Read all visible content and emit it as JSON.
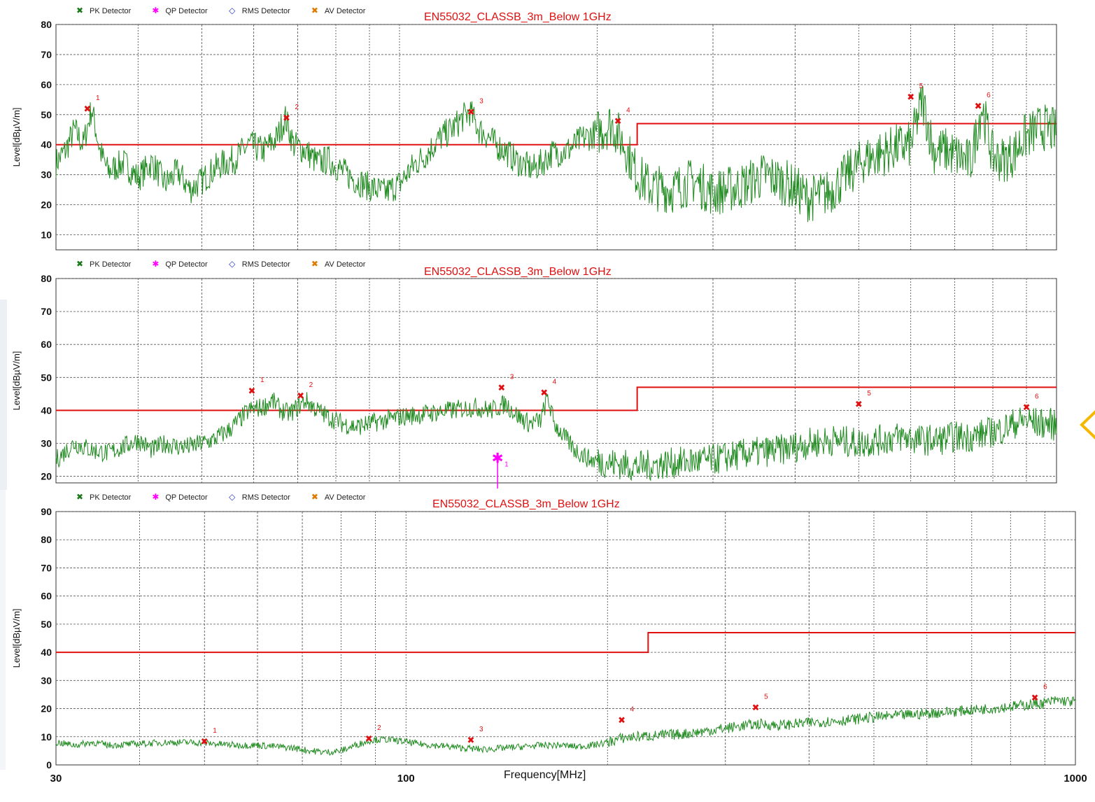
{
  "legend": {
    "pk": {
      "label": "PK Detector",
      "color": "#1a7a1a"
    },
    "qp": {
      "label": "QP Detector",
      "color": "#ff00ff"
    },
    "rms": {
      "label": "RMS Detector",
      "color": "#2233cc"
    },
    "av": {
      "label": "AV Detector",
      "color": "#e07a00"
    }
  },
  "colors": {
    "trace": "#1f8a1f",
    "limit": "#e01010",
    "marker": "#e01010",
    "qp": "#ff00ff",
    "accent": "#f5b800"
  },
  "icons": {
    "navigation": "chevron-left-icon"
  },
  "x_axis": {
    "label": "Frequency[MHz]",
    "scale": "log",
    "range": [
      30,
      1000
    ],
    "tick_labels": [
      "30",
      "100",
      "1000"
    ]
  },
  "chart_data": [
    {
      "type": "line",
      "title": "EN55032_CLASSB_3m_Below 1GHz",
      "ylabel": "Level[dBµV/m]",
      "ylim": [
        5,
        80
      ],
      "yticks": [
        10,
        20,
        30,
        40,
        50,
        60,
        70,
        80
      ],
      "xlim": [
        30,
        1000
      ],
      "xscale": "log",
      "grid": true,
      "legend_position": "top-left",
      "limit_line": [
        {
          "x": [
            30,
            230
          ],
          "y": 40
        },
        {
          "x": [
            230,
            1000
          ],
          "y": 47
        }
      ],
      "trace_points": [
        [
          30,
          34
        ],
        [
          31,
          38
        ],
        [
          32,
          45
        ],
        [
          33,
          40
        ],
        [
          34,
          52
        ],
        [
          35,
          38
        ],
        [
          36,
          31
        ],
        [
          38,
          34
        ],
        [
          40,
          29
        ],
        [
          42,
          34
        ],
        [
          44,
          27
        ],
        [
          46,
          31
        ],
        [
          48,
          25
        ],
        [
          50,
          28
        ],
        [
          53,
          33
        ],
        [
          56,
          35
        ],
        [
          59,
          40
        ],
        [
          62,
          38
        ],
        [
          65,
          42
        ],
        [
          67,
          49
        ],
        [
          69,
          40
        ],
        [
          72,
          38
        ],
        [
          75,
          34
        ],
        [
          78,
          35
        ],
        [
          82,
          31
        ],
        [
          86,
          28
        ],
        [
          90,
          26
        ],
        [
          95,
          24
        ],
        [
          100,
          27
        ],
        [
          105,
          33
        ],
        [
          110,
          37
        ],
        [
          115,
          42
        ],
        [
          120,
          45
        ],
        [
          125,
          49
        ],
        [
          128,
          51
        ],
        [
          132,
          45
        ],
        [
          136,
          43
        ],
        [
          140,
          40
        ],
        [
          145,
          38
        ],
        [
          150,
          35
        ],
        [
          155,
          33
        ],
        [
          160,
          32
        ],
        [
          165,
          34
        ],
        [
          170,
          37
        ],
        [
          180,
          38
        ],
        [
          190,
          42
        ],
        [
          200,
          44
        ],
        [
          210,
          47
        ],
        [
          220,
          40
        ],
        [
          230,
          30
        ],
        [
          240,
          26
        ],
        [
          260,
          25
        ],
        [
          280,
          28
        ],
        [
          300,
          24
        ],
        [
          330,
          26
        ],
        [
          360,
          30
        ],
        [
          390,
          27
        ],
        [
          420,
          22
        ],
        [
          450,
          24
        ],
        [
          480,
          30
        ],
        [
          510,
          35
        ],
        [
          540,
          37
        ],
        [
          570,
          39
        ],
        [
          600,
          40
        ],
        [
          625,
          55
        ],
        [
          650,
          38
        ],
        [
          680,
          38
        ],
        [
          710,
          36
        ],
        [
          740,
          34
        ],
        [
          770,
          53
        ],
        [
          800,
          36
        ],
        [
          830,
          35
        ],
        [
          860,
          37
        ],
        [
          890,
          42
        ],
        [
          920,
          44
        ],
        [
          950,
          46
        ],
        [
          980,
          45
        ],
        [
          1000,
          44
        ]
      ],
      "markers": [
        {
          "id": "1",
          "freq": 33.5,
          "level": 52.0,
          "detector": "PK"
        },
        {
          "id": "2",
          "freq": 67.3,
          "level": 49.0,
          "detector": "PK"
        },
        {
          "id": "3",
          "freq": 128.5,
          "level": 51.0,
          "detector": "PK"
        },
        {
          "id": "4",
          "freq": 215.0,
          "level": 48.0,
          "detector": "PK"
        },
        {
          "id": "5",
          "freq": 600.0,
          "level": 56.0,
          "detector": "PK"
        },
        {
          "id": "6",
          "freq": 760.0,
          "level": 53.0,
          "detector": "PK"
        }
      ]
    },
    {
      "type": "line",
      "title": "EN55032_CLASSB_3m_Below 1GHz",
      "ylabel": "Level[dBµV/m]",
      "ylim": [
        18,
        80
      ],
      "yticks": [
        20,
        30,
        40,
        50,
        60,
        70,
        80
      ],
      "xlim": [
        30,
        1000
      ],
      "xscale": "log",
      "grid": true,
      "legend_position": "top-left",
      "limit_line": [
        {
          "x": [
            30,
            230
          ],
          "y": 40
        },
        {
          "x": [
            230,
            1000
          ],
          "y": 47
        }
      ],
      "trace_points": [
        [
          30,
          25
        ],
        [
          32,
          30
        ],
        [
          34,
          28
        ],
        [
          36,
          27
        ],
        [
          38,
          29
        ],
        [
          40,
          31
        ],
        [
          42,
          28
        ],
        [
          44,
          30
        ],
        [
          46,
          29
        ],
        [
          48,
          29
        ],
        [
          50,
          30
        ],
        [
          52,
          31
        ],
        [
          55,
          34
        ],
        [
          57,
          37
        ],
        [
          59,
          40
        ],
        [
          62,
          41
        ],
        [
          64,
          43
        ],
        [
          66,
          40
        ],
        [
          68,
          39
        ],
        [
          70,
          41
        ],
        [
          72,
          43
        ],
        [
          75,
          40
        ],
        [
          78,
          38
        ],
        [
          82,
          36
        ],
        [
          86,
          35
        ],
        [
          90,
          36
        ],
        [
          95,
          37
        ],
        [
          100,
          38
        ],
        [
          110,
          39
        ],
        [
          120,
          40
        ],
        [
          130,
          41
        ],
        [
          138,
          40
        ],
        [
          145,
          42
        ],
        [
          152,
          38
        ],
        [
          158,
          36
        ],
        [
          164,
          37
        ],
        [
          168,
          44
        ],
        [
          172,
          36
        ],
        [
          178,
          32
        ],
        [
          185,
          28
        ],
        [
          195,
          25
        ],
        [
          210,
          24
        ],
        [
          230,
          23
        ],
        [
          260,
          24
        ],
        [
          300,
          25
        ],
        [
          340,
          27
        ],
        [
          380,
          28
        ],
        [
          420,
          30
        ],
        [
          460,
          31
        ],
        [
          500,
          30
        ],
        [
          540,
          31
        ],
        [
          580,
          32
        ],
        [
          620,
          31
        ],
        [
          660,
          31
        ],
        [
          700,
          32
        ],
        [
          740,
          32
        ],
        [
          780,
          33
        ],
        [
          820,
          34
        ],
        [
          860,
          36
        ],
        [
          900,
          37
        ],
        [
          940,
          36
        ],
        [
          980,
          36
        ],
        [
          1000,
          35
        ]
      ],
      "markers": [
        {
          "id": "1",
          "freq": 59.6,
          "level": 46.0,
          "detector": "PK"
        },
        {
          "id": "2",
          "freq": 70.7,
          "level": 44.5,
          "detector": "PK"
        },
        {
          "id": "3",
          "freq": 143.0,
          "level": 47.0,
          "detector": "PK"
        },
        {
          "id": "4",
          "freq": 166.0,
          "level": 45.5,
          "detector": "PK"
        },
        {
          "id": "5",
          "freq": 500.0,
          "level": 42.0,
          "detector": "PK"
        },
        {
          "id": "6",
          "freq": 900.0,
          "level": 41.0,
          "detector": "PK"
        },
        {
          "id": "1",
          "freq": 141.0,
          "level": 25.5,
          "detector": "QP"
        }
      ]
    },
    {
      "type": "line",
      "title": "EN55032_CLASSB_3m_Below 1GHz",
      "ylabel": "Level[dBµV/m]",
      "ylim": [
        0,
        90
      ],
      "yticks": [
        0,
        10,
        20,
        30,
        40,
        50,
        60,
        70,
        80,
        90
      ],
      "xlim": [
        30,
        1000
      ],
      "xscale": "log",
      "xticks": [
        30,
        100,
        1000
      ],
      "xlabel": "Frequency[MHz]",
      "grid": true,
      "legend_position": "top-left",
      "limit_line": [
        {
          "x": [
            30,
            230
          ],
          "y": 40
        },
        {
          "x": [
            230,
            1000
          ],
          "y": 47
        }
      ],
      "trace_points": [
        [
          30,
          8
        ],
        [
          32,
          7
        ],
        [
          34,
          8
        ],
        [
          36,
          7
        ],
        [
          40,
          7.5
        ],
        [
          44,
          8
        ],
        [
          48,
          8
        ],
        [
          52,
          7.5
        ],
        [
          56,
          7
        ],
        [
          60,
          7
        ],
        [
          64,
          6.5
        ],
        [
          68,
          6
        ],
        [
          72,
          5
        ],
        [
          76,
          4.5
        ],
        [
          80,
          5
        ],
        [
          84,
          7
        ],
        [
          88,
          8.5
        ],
        [
          90,
          9
        ],
        [
          94,
          9
        ],
        [
          98,
          8.5
        ],
        [
          104,
          7.5
        ],
        [
          110,
          7
        ],
        [
          116,
          6.5
        ],
        [
          122,
          6
        ],
        [
          130,
          5.5
        ],
        [
          140,
          6
        ],
        [
          150,
          6.5
        ],
        [
          160,
          7
        ],
        [
          170,
          7
        ],
        [
          180,
          6.5
        ],
        [
          190,
          7
        ],
        [
          200,
          8
        ],
        [
          210,
          9.5
        ],
        [
          220,
          10
        ],
        [
          240,
          10.5
        ],
        [
          260,
          11
        ],
        [
          280,
          12
        ],
        [
          300,
          13
        ],
        [
          320,
          14
        ],
        [
          340,
          14.5
        ],
        [
          360,
          14
        ],
        [
          380,
          14.5
        ],
        [
          400,
          15
        ],
        [
          430,
          15.5
        ],
        [
          460,
          16
        ],
        [
          500,
          17
        ],
        [
          540,
          17.5
        ],
        [
          580,
          18
        ],
        [
          620,
          18.5
        ],
        [
          660,
          19
        ],
        [
          700,
          19.5
        ],
        [
          740,
          20
        ],
        [
          780,
          20.5
        ],
        [
          820,
          21
        ],
        [
          860,
          21.5
        ],
        [
          900,
          22
        ],
        [
          940,
          23
        ],
        [
          980,
          22.5
        ],
        [
          1000,
          22.5
        ]
      ],
      "markers": [
        {
          "id": "1",
          "freq": 50.0,
          "level": 8.5,
          "detector": "PK"
        },
        {
          "id": "2",
          "freq": 88.0,
          "level": 9.5,
          "detector": "PK"
        },
        {
          "id": "3",
          "freq": 125.0,
          "level": 9.0,
          "detector": "PK"
        },
        {
          "id": "4",
          "freq": 210.0,
          "level": 16.0,
          "detector": "PK"
        },
        {
          "id": "5",
          "freq": 333.0,
          "level": 20.5,
          "detector": "PK"
        },
        {
          "id": "6",
          "freq": 870.0,
          "level": 24.0,
          "detector": "PK"
        }
      ]
    }
  ]
}
